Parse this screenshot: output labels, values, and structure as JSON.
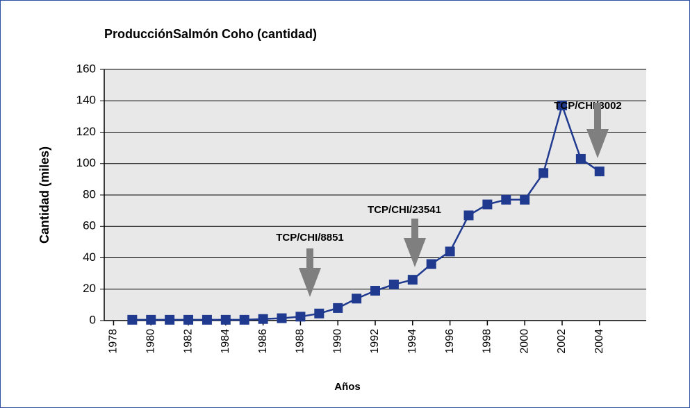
{
  "chart_data": {
    "type": "line",
    "title": "ProducciónSalmón Coho (cantidad)",
    "xlabel": "Años",
    "ylabel": "Cantidad (miles)",
    "x": [
      1979,
      1980,
      1981,
      1982,
      1983,
      1984,
      1985,
      1986,
      1987,
      1988,
      1989,
      1990,
      1991,
      1992,
      1993,
      1994,
      1995,
      1996,
      1997,
      1998,
      1999,
      2000,
      2001,
      2002,
      2003,
      2004
    ],
    "series": [
      {
        "color": "#1f3a8f",
        "values": [
          0.5,
          0.5,
          0.5,
          0.5,
          0.5,
          0.5,
          0.5,
          1,
          1.5,
          2.5,
          4.5,
          8,
          14,
          19,
          23,
          26,
          36,
          44,
          67,
          74,
          77,
          77,
          94,
          137,
          103,
          95
        ]
      }
    ],
    "xlim": [
      1977.5,
      2006.5
    ],
    "xticks": [
      1978,
      1980,
      1982,
      1984,
      1986,
      1988,
      1990,
      1992,
      1994,
      1996,
      1998,
      2000,
      2002,
      2004
    ],
    "ylim": [
      0,
      160
    ],
    "yticks": [
      0,
      20,
      40,
      60,
      80,
      100,
      120,
      140,
      160
    ],
    "grid": true,
    "annotations": [
      "TCP/CHI/8851",
      "TCP/CHI/23541",
      "TCP/CHI/3002"
    ]
  }
}
